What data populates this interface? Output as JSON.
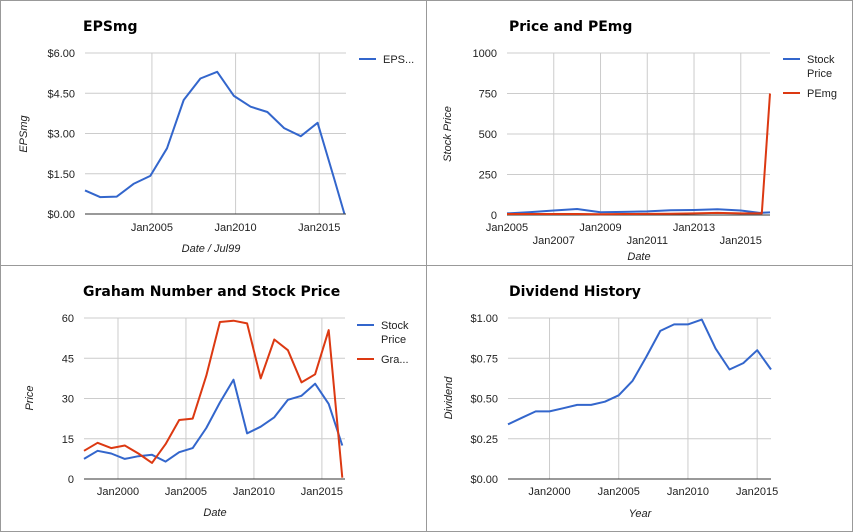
{
  "colors": {
    "series1": "#3366cc",
    "series2": "#dc3912",
    "grid": "#cccccc",
    "axis": "#333333",
    "text": "#222222",
    "axis_title": "#222222"
  },
  "chart_data": [
    {
      "id": "eps",
      "type": "line",
      "title": "EPSmg",
      "xlabel": "Date / Jul99",
      "ylabel": "EPSmg",
      "grid": true,
      "legend": "right",
      "xlim": [
        2001,
        2016.6
      ],
      "ylim": [
        0,
        6
      ],
      "x_ticks": [
        {
          "v": 2005,
          "label": "Jan2005"
        },
        {
          "v": 2010,
          "label": "Jan2010"
        },
        {
          "v": 2015,
          "label": "Jan2015"
        }
      ],
      "y_ticks": [
        {
          "v": 0,
          "label": "$0.00"
        },
        {
          "v": 1.5,
          "label": "$1.50"
        },
        {
          "v": 3,
          "label": "$3.00"
        },
        {
          "v": 4.5,
          "label": "$4.50"
        },
        {
          "v": 6,
          "label": "$6.00"
        }
      ],
      "series": [
        {
          "name": "EPS...",
          "color": "#3366cc",
          "x": [
            2001,
            2001.9,
            2002.9,
            2003.9,
            2004.9,
            2005.9,
            2006.9,
            2007.9,
            2008.9,
            2009.9,
            2010.9,
            2011.9,
            2012.9,
            2013.9,
            2014.9,
            2015.9,
            2016.5
          ],
          "y": [
            0.88,
            0.63,
            0.65,
            1.12,
            1.42,
            2.45,
            4.25,
            5.05,
            5.3,
            4.4,
            4.0,
            3.8,
            3.2,
            2.9,
            3.4,
            1.3,
            0.02
          ]
        }
      ]
    },
    {
      "id": "price-pe",
      "type": "line",
      "title": "Price and PEmg",
      "xlabel": "Date",
      "ylabel": "Stock Price",
      "grid": true,
      "legend": "right",
      "xlim": [
        2005,
        2016.25
      ],
      "ylim": [
        0,
        1000
      ],
      "x_ticks": [
        {
          "v": 2005,
          "label": "Jan2005",
          "row": 0
        },
        {
          "v": 2007,
          "label": "Jan2007",
          "row": 1
        },
        {
          "v": 2009,
          "label": "Jan2009",
          "row": 0
        },
        {
          "v": 2011,
          "label": "Jan2011",
          "row": 1
        },
        {
          "v": 2013,
          "label": "Jan2013",
          "row": 0
        },
        {
          "v": 2015,
          "label": "Jan2015",
          "row": 1
        }
      ],
      "y_ticks": [
        {
          "v": 0,
          "label": "0"
        },
        {
          "v": 250,
          "label": "250"
        },
        {
          "v": 500,
          "label": "500"
        },
        {
          "v": 750,
          "label": "750"
        },
        {
          "v": 1000,
          "label": "1000"
        }
      ],
      "series": [
        {
          "name": "Stock Price",
          "color": "#3366cc",
          "x": [
            2005,
            2006,
            2007,
            2008,
            2009,
            2010,
            2011,
            2012,
            2013,
            2014,
            2015,
            2015.8,
            2016.25
          ],
          "y": [
            10,
            18,
            28,
            37,
            17,
            19,
            22,
            29,
            31,
            35,
            28,
            13,
            16
          ]
        },
        {
          "name": "PEmg",
          "color": "#dc3912",
          "x": [
            2005,
            2006,
            2007,
            2008,
            2009,
            2010,
            2011,
            2012,
            2013,
            2014,
            2015,
            2015.9,
            2016.25
          ],
          "y": [
            6,
            6,
            6,
            6,
            5,
            6,
            7,
            8,
            10,
            13,
            10,
            10,
            750
          ]
        }
      ]
    },
    {
      "id": "graham",
      "type": "line",
      "title": "Graham Number and Stock Price",
      "xlabel": "Date",
      "ylabel": "Price",
      "grid": true,
      "legend": "right",
      "xlim": [
        1997.5,
        2016.7
      ],
      "ylim": [
        0,
        60
      ],
      "x_ticks": [
        {
          "v": 2000,
          "label": "Jan2000"
        },
        {
          "v": 2005,
          "label": "Jan2005"
        },
        {
          "v": 2010,
          "label": "Jan2010"
        },
        {
          "v": 2015,
          "label": "Jan2015"
        }
      ],
      "y_ticks": [
        {
          "v": 0,
          "label": "0"
        },
        {
          "v": 15,
          "label": "15"
        },
        {
          "v": 30,
          "label": "30"
        },
        {
          "v": 45,
          "label": "45"
        },
        {
          "v": 60,
          "label": "60"
        }
      ],
      "series": [
        {
          "name": "Stock Price",
          "color": "#3366cc",
          "x": [
            1997.5,
            1998.5,
            1999.5,
            2000.5,
            2001.5,
            2002.5,
            2003.5,
            2004.5,
            2005.5,
            2006.5,
            2007.5,
            2008.5,
            2009.5,
            2010.5,
            2011.5,
            2012.5,
            2013.5,
            2014.5,
            2015.5,
            2016.5
          ],
          "y": [
            7.5,
            10.5,
            9.5,
            7.5,
            8.5,
            9.0,
            6.5,
            10.0,
            11.5,
            19.0,
            28.5,
            37.0,
            17.0,
            19.5,
            23.0,
            29.5,
            31.0,
            35.5,
            28.0,
            12.5
          ]
        },
        {
          "name": "Gra...",
          "color": "#dc3912",
          "x": [
            1997.5,
            1998.5,
            1999.5,
            2000.5,
            2001.5,
            2002.5,
            2003.5,
            2004.5,
            2005.5,
            2006.5,
            2007.5,
            2008.5,
            2009.5,
            2010.5,
            2011.5,
            2012.5,
            2013.5,
            2014.5,
            2015.5,
            2016.5
          ],
          "y": [
            10.5,
            13.5,
            11.5,
            12.5,
            9.5,
            6.0,
            13.0,
            22.0,
            22.5,
            38.5,
            58.5,
            59.0,
            58.0,
            37.5,
            52.0,
            48.0,
            36.0,
            39.0,
            55.5,
            0.5
          ]
        }
      ]
    },
    {
      "id": "dividend",
      "type": "line",
      "title": "Dividend History",
      "xlabel": "Year",
      "ylabel": "Dividend",
      "grid": true,
      "legend": "none",
      "xlim": [
        1997,
        2016
      ],
      "ylim": [
        0,
        1
      ],
      "x_ticks": [
        {
          "v": 2000,
          "label": "Jan2000"
        },
        {
          "v": 2005,
          "label": "Jan2005"
        },
        {
          "v": 2010,
          "label": "Jan2010"
        },
        {
          "v": 2015,
          "label": "Jan2015"
        }
      ],
      "y_ticks": [
        {
          "v": 0,
          "label": "$0.00"
        },
        {
          "v": 0.25,
          "label": "$0.25"
        },
        {
          "v": 0.5,
          "label": "$0.50"
        },
        {
          "v": 0.75,
          "label": "$0.75"
        },
        {
          "v": 1,
          "label": "$1.00"
        }
      ],
      "series": [
        {
          "name": "Dividend",
          "color": "#3366cc",
          "x": [
            1997,
            1998,
            1999,
            2000,
            2001,
            2002,
            2003,
            2004,
            2005,
            2006,
            2007,
            2008,
            2009,
            2010,
            2011,
            2012,
            2013,
            2014,
            2015,
            2016
          ],
          "y": [
            0.34,
            0.38,
            0.42,
            0.42,
            0.44,
            0.46,
            0.46,
            0.48,
            0.52,
            0.61,
            0.76,
            0.92,
            0.96,
            0.96,
            0.99,
            0.81,
            0.68,
            0.72,
            0.8,
            0.68
          ]
        }
      ]
    }
  ]
}
